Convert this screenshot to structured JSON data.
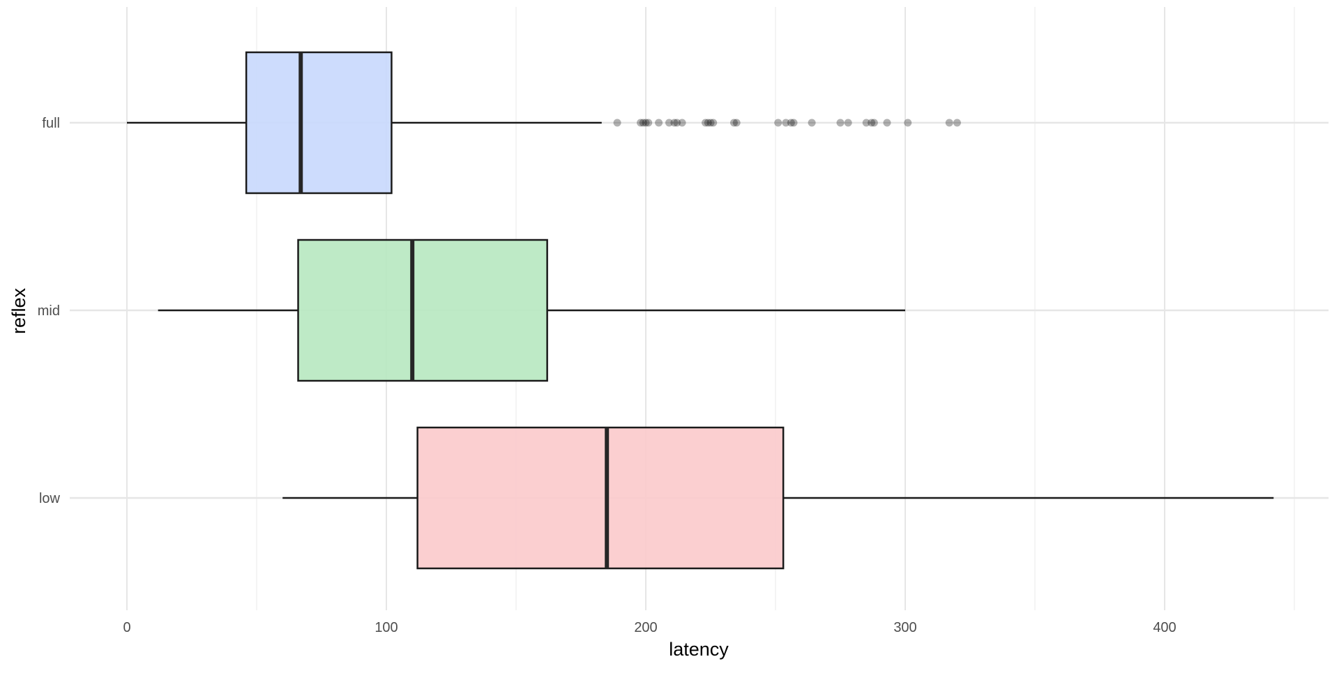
{
  "chart_data": {
    "type": "boxplot",
    "orientation": "horizontal",
    "xlabel": "latency",
    "ylabel": "reflex",
    "xlim": [
      -22,
      465
    ],
    "x_ticks": [
      0,
      100,
      200,
      300,
      400
    ],
    "x_tick_labels": [
      "0",
      "100",
      "200",
      "300",
      "400"
    ],
    "x_minor_ticks": [
      50,
      150,
      250,
      350,
      450
    ],
    "categories": [
      "full",
      "mid",
      "low"
    ],
    "grid": true,
    "legend": "none",
    "series": [
      {
        "category": "full",
        "color": "#c9d9fd",
        "whisker_low": 0,
        "q1": 46,
        "median": 67,
        "q3": 102,
        "whisker_high": 183,
        "outliers": [
          189,
          198,
          199,
          200,
          201,
          205,
          209,
          211,
          212,
          214,
          223,
          224,
          225,
          226,
          234,
          235,
          251,
          254,
          256,
          257,
          264,
          275,
          278,
          285,
          287,
          288,
          293,
          301,
          317,
          320
        ]
      },
      {
        "category": "mid",
        "color": "#b9e8c1",
        "whisker_low": 12,
        "q1": 66,
        "median": 110,
        "q3": 162,
        "whisker_high": 300,
        "outliers": []
      },
      {
        "category": "low",
        "color": "#fbcbcc",
        "whisker_low": 60,
        "q1": 112,
        "median": 185,
        "q3": 253,
        "whisker_high": 442,
        "outliers": []
      }
    ]
  }
}
